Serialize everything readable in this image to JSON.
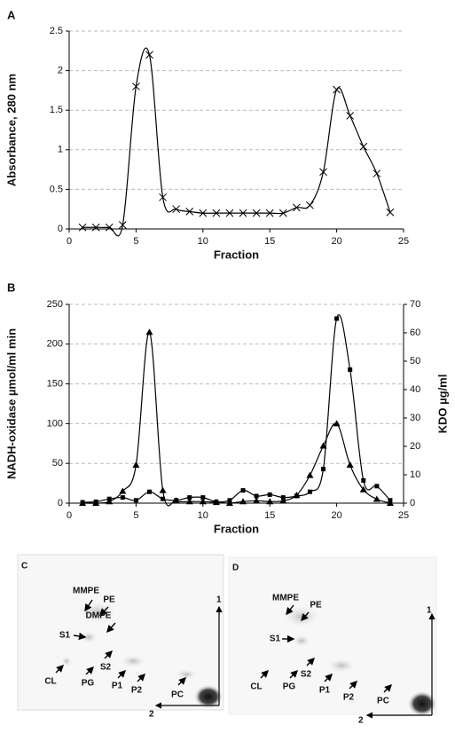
{
  "chart_data": [
    {
      "type": "line",
      "panel": "A",
      "x_label": "Fraction",
      "y_label": "Absorbance, 280 nm",
      "x": [
        1,
        2,
        3,
        4,
        5,
        6,
        7,
        8,
        9,
        10,
        11,
        12,
        13,
        14,
        15,
        16,
        17,
        18,
        19,
        20,
        21,
        22,
        23,
        24
      ],
      "series": [
        {
          "color": "#000000",
          "marker": "x",
          "values": [
            0.02,
            0.02,
            0.02,
            0.05,
            1.8,
            2.2,
            0.4,
            0.25,
            0.22,
            0.2,
            0.2,
            0.2,
            0.2,
            0.2,
            0.2,
            0.2,
            0.27,
            0.3,
            0.72,
            1.76,
            1.43,
            1.04,
            0.7,
            0.21
          ]
        }
      ],
      "xlim": [
        0,
        25
      ],
      "xticks": [
        0,
        5,
        10,
        15,
        20,
        25
      ],
      "ylim": [
        0,
        2.5
      ],
      "yticks": [
        0,
        0.5,
        1,
        1.5,
        2,
        2.5
      ],
      "grid": true
    },
    {
      "type": "line",
      "panel": "B",
      "x_label": "Fraction",
      "y_label": "NADH-oxidase µmol/ml min",
      "y2_label": "KDO µg/ml",
      "x": [
        1,
        2,
        3,
        4,
        5,
        6,
        7,
        8,
        9,
        10,
        11,
        12,
        13,
        14,
        15,
        16,
        17,
        18,
        19,
        20,
        21,
        22,
        23,
        24
      ],
      "series": [
        {
          "color": "#000000",
          "marker": "triangle",
          "values": [
            0,
            0,
            2,
            15,
            48,
            215,
            16,
            3,
            2,
            2,
            1,
            0,
            2,
            3,
            2,
            3,
            10,
            35,
            72,
            100,
            48,
            17,
            5,
            0
          ]
        },
        {
          "color": "#000000",
          "marker": "square",
          "axis": "y2",
          "values": [
            0.3,
            0.5,
            1.5,
            2,
            1,
            4,
            1.5,
            1,
            2,
            2,
            0.5,
            1,
            4.5,
            2.5,
            3,
            2,
            2.5,
            4,
            12,
            65,
            47,
            8,
            6,
            1
          ]
        }
      ],
      "xlim": [
        0,
        25
      ],
      "xticks": [
        0,
        5,
        10,
        15,
        20,
        25
      ],
      "ylim": [
        0,
        250
      ],
      "yticks": [
        0,
        50,
        100,
        150,
        200,
        250
      ],
      "y2lim": [
        0,
        70
      ],
      "y2ticks": [
        0,
        10,
        20,
        30,
        40,
        50,
        60,
        70
      ],
      "grid": true
    }
  ],
  "plates": [
    {
      "panel": "C",
      "labels": [
        "MMPE",
        "PE",
        "DMPE",
        "S1",
        "CL",
        "PG",
        "S2",
        "P1",
        "P2",
        "PC"
      ],
      "dim1": "1",
      "dim2": "2"
    },
    {
      "panel": "D",
      "labels": [
        "MMPE",
        "PE",
        "S1",
        "CL",
        "PG",
        "S2",
        "P1",
        "P2",
        "PC"
      ],
      "dim1": "1",
      "dim2": "2"
    }
  ]
}
